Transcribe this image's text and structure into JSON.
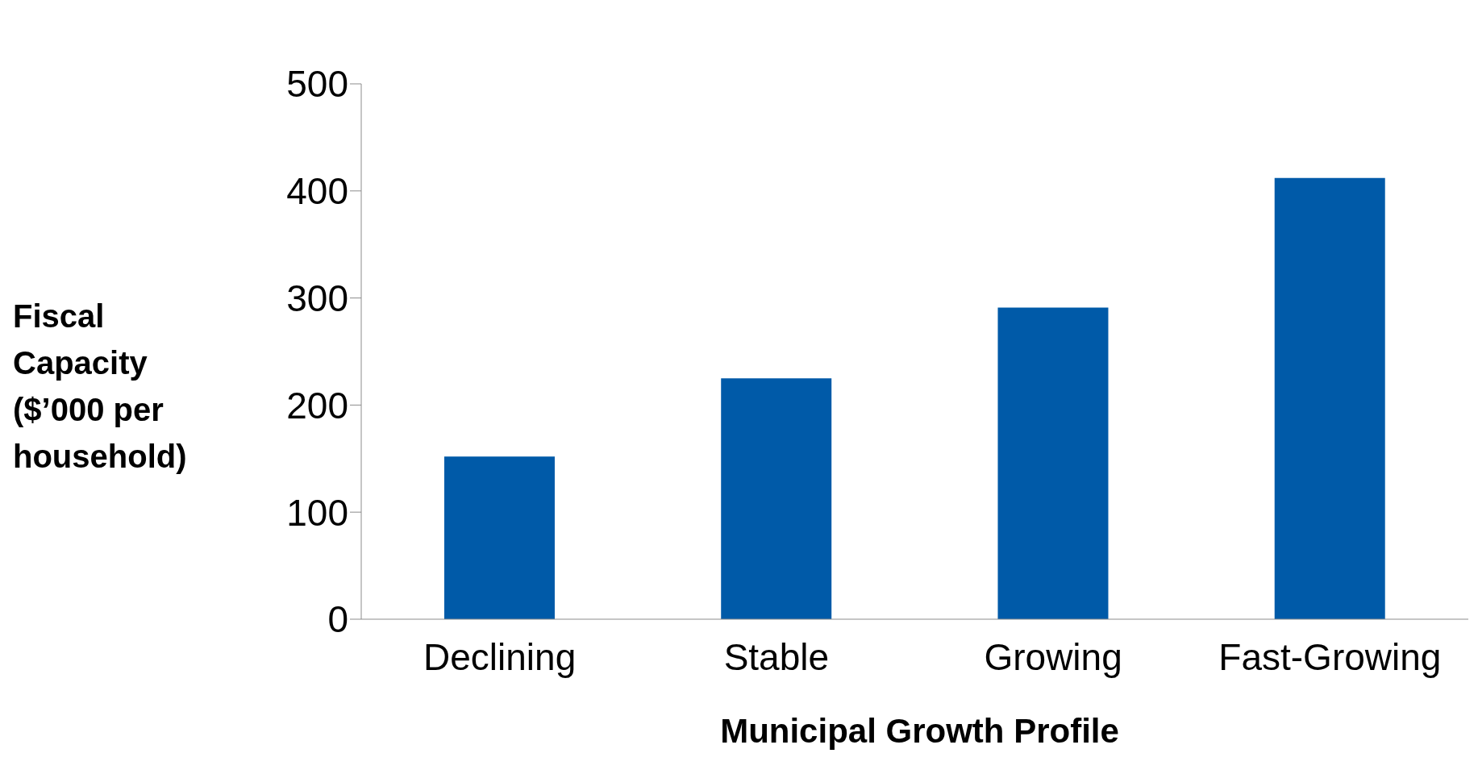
{
  "chart_data": {
    "type": "bar",
    "xlabel": "Municipal Growth Profile",
    "ylabel": "Fiscal Capacity ($’000 per household)",
    "categories": [
      "Declining",
      "Stable",
      "Growing",
      "Fast-Growing"
    ],
    "values": [
      152,
      225,
      291,
      412
    ],
    "color": "#005aa8",
    "ylim": [
      0,
      500
    ],
    "yticks": [
      0,
      100,
      200,
      300,
      400,
      500
    ],
    "grid": false,
    "legend": false
  }
}
